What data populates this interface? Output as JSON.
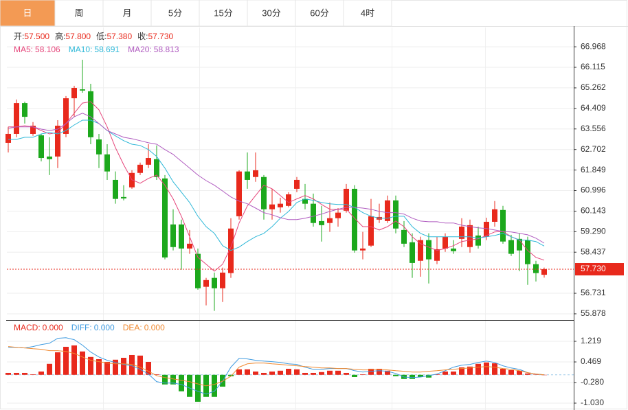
{
  "tabs": [
    "日",
    "周",
    "月",
    "5分",
    "15分",
    "30分",
    "60分",
    "4时"
  ],
  "chart_data": [
    {
      "type": "candlestick",
      "header": [
        {
          "label": "开:",
          "value": "57.500"
        },
        {
          "label": "高:",
          "value": "57.800"
        },
        {
          "label": "低:",
          "value": "57.380"
        },
        {
          "label": "收:",
          "value": "57.730"
        }
      ],
      "open": [
        62.98,
        63.35,
        64.63,
        63.35,
        63.29,
        62.41,
        62.41,
        63.35,
        64.83,
        65.2,
        65.12,
        63.12,
        62.5,
        61.44,
        60.73,
        61.13,
        61.73,
        62.07,
        62.3,
        61.5,
        59.59,
        59.59,
        58.59,
        58.37,
        57.0,
        57.37,
        56.94,
        57.57,
        59.93,
        61.79,
        61.56,
        61.56,
        60.22,
        60.3,
        60.36,
        61.07,
        60.65,
        60.45,
        59.73,
        59.65,
        59.85,
        60.16,
        61.07,
        58.51,
        58.71,
        59.79,
        59.73,
        60.59,
        59.36,
        58.85,
        58.08,
        58.94,
        58.08,
        58.59,
        58.59,
        58.99,
        58.65,
        59.13,
        59.08,
        59.7,
        60.19,
        58.94,
        58.99,
        58.94,
        57.94,
        57.5
      ],
      "high": [
        63.64,
        64.78,
        64.69,
        63.84,
        63.35,
        63.21,
        63.92,
        64.92,
        65.35,
        66.43,
        65.43,
        63.35,
        62.92,
        61.79,
        61.22,
        61.84,
        62.16,
        62.92,
        62.87,
        61.64,
        60.22,
        59.79,
        59.36,
        58.59,
        57.37,
        57.59,
        57.8,
        59.85,
        61.84,
        62.58,
        62.58,
        61.64,
        61.07,
        60.7,
        60.93,
        61.56,
        61.27,
        60.87,
        60.36,
        60.5,
        60.27,
        61.27,
        61.22,
        59.28,
        60.65,
        60.45,
        60.79,
        60.79,
        59.73,
        59.22,
        59.08,
        59.22,
        59.08,
        59.22,
        58.94,
        59.85,
        59.79,
        59.5,
        59.87,
        60.56,
        60.36,
        59.16,
        59.22,
        59.08,
        58.08,
        57.8
      ],
      "low": [
        62.58,
        63.21,
        63.78,
        63.27,
        62.21,
        61.64,
        61.93,
        63.21,
        64.06,
        65.06,
        62.92,
        61.93,
        61.44,
        60.45,
        60.59,
        61.07,
        61.64,
        61.93,
        61.44,
        58.14,
        58.51,
        57.71,
        58.37,
        56.88,
        56.23,
        56.0,
        56.37,
        57.37,
        59.79,
        61.07,
        61.36,
        59.79,
        59.79,
        60.08,
        60.3,
        60.93,
        60.22,
        59.5,
        58.88,
        59.28,
        59.5,
        60.08,
        58.42,
        58.14,
        58.65,
        59.65,
        59.65,
        59.22,
        58.65,
        57.37,
        57.42,
        57.14,
        57.94,
        58.45,
        58.37,
        58.65,
        58.42,
        58.59,
        58.94,
        59.5,
        58.79,
        58.28,
        57.65,
        57.08,
        57.22,
        57.38
      ],
      "close": [
        63.35,
        64.63,
        64.06,
        63.69,
        62.35,
        62.3,
        63.69,
        64.83,
        65.26,
        65.15,
        63.21,
        62.5,
        61.79,
        60.65,
        60.67,
        61.73,
        62.07,
        62.35,
        61.56,
        58.22,
        58.65,
        58.59,
        58.79,
        56.94,
        57.28,
        56.94,
        57.59,
        59.42,
        61.79,
        61.44,
        61.84,
        60.22,
        60.42,
        60.45,
        60.84,
        61.44,
        60.45,
        59.65,
        59.56,
        59.85,
        60.08,
        61.07,
        58.51,
        58.59,
        59.93,
        59.9,
        60.59,
        59.42,
        58.79,
        57.99,
        58.94,
        58.14,
        58.56,
        59.08,
        58.48,
        59.5,
        59.56,
        58.71,
        59.7,
        60.22,
        58.88,
        58.37,
        58.51,
        57.94,
        57.57,
        57.73
      ],
      "up_color": "#e8291c",
      "down_color": "#1ca81c",
      "series": [
        {
          "name": "MA5:",
          "value_label": "58.106",
          "color": "#e5457a",
          "values": [
            63.64,
            63.64,
            63.69,
            63.64,
            63.49,
            63.35,
            63.41,
            63.78,
            64.21,
            64.63,
            64.69,
            64.35,
            63.64,
            62.78,
            62.07,
            61.44,
            61.3,
            61.5,
            61.64,
            61.22,
            60.65,
            59.93,
            59.08,
            58.22,
            57.94,
            57.65,
            57.94,
            58.65,
            59.65,
            60.36,
            60.79,
            61.22,
            61.07,
            60.79,
            60.5,
            60.65,
            60.79,
            60.65,
            60.42,
            60.22,
            60.22,
            60.22,
            59.85,
            59.5,
            59.5,
            59.36,
            59.5,
            59.73,
            59.5,
            59.08,
            58.79,
            58.65,
            58.51,
            58.59,
            58.71,
            58.88,
            58.94,
            58.99,
            59.13,
            59.28,
            59.3,
            59.08,
            58.94,
            58.51,
            58.22,
            58.106
          ]
        },
        {
          "name": "MA10:",
          "value_label": "58.691",
          "color": "#2eb8d8",
          "values": [
            63.12,
            63.12,
            63.21,
            63.21,
            63.35,
            63.41,
            63.35,
            63.49,
            63.72,
            63.92,
            63.92,
            63.78,
            63.49,
            63.27,
            63.07,
            62.92,
            62.87,
            62.7,
            62.41,
            61.93,
            61.36,
            60.93,
            60.5,
            59.93,
            59.5,
            59.22,
            58.71,
            58.51,
            58.65,
            58.88,
            59.08,
            59.22,
            59.5,
            59.85,
            60.13,
            60.5,
            60.65,
            60.59,
            60.5,
            60.45,
            60.42,
            60.42,
            60.3,
            60.08,
            59.93,
            59.85,
            59.85,
            59.93,
            59.93,
            59.5,
            59.22,
            59.08,
            59.08,
            59.08,
            59.08,
            59.08,
            59.08,
            59.02,
            59.08,
            59.13,
            59.22,
            59.08,
            58.94,
            58.94,
            58.88,
            58.691
          ]
        },
        {
          "name": "MA20:",
          "value_label": "58.813",
          "color": "#b05cc0",
          "values": [
            63.58,
            63.64,
            63.64,
            63.64,
            63.55,
            63.49,
            63.55,
            63.78,
            64.06,
            64.21,
            64.06,
            63.78,
            63.49,
            63.35,
            63.21,
            63.15,
            63.07,
            62.98,
            62.92,
            62.7,
            62.5,
            62.21,
            61.93,
            61.64,
            61.41,
            61.22,
            60.98,
            60.73,
            60.56,
            60.45,
            60.27,
            60.08,
            59.99,
            59.87,
            59.79,
            59.79,
            59.85,
            59.93,
            60.02,
            60.13,
            60.22,
            60.3,
            60.3,
            60.27,
            60.22,
            60.13,
            60.08,
            60.08,
            60.02,
            59.85,
            59.73,
            59.7,
            59.7,
            59.65,
            59.65,
            59.56,
            59.5,
            59.45,
            59.42,
            59.36,
            59.3,
            59.28,
            59.22,
            59.16,
            59.02,
            58.813
          ]
        }
      ],
      "ylim": [
        55.62,
        67.77
      ],
      "yticks": [
        66.968,
        66.115,
        65.262,
        64.409,
        63.556,
        62.702,
        61.849,
        60.996,
        60.143,
        {
          "value": 59.29,
          "label": "59.290"
        },
        58.437,
        56.731,
        55.878
      ],
      "grid": true
    },
    {
      "type": "macd",
      "histogram": {
        "name": "MACD:",
        "value_label": "0.000",
        "values": [
          0.07,
          0.07,
          0.07,
          0.02,
          0.12,
          0.4,
          0.82,
          1.02,
          1.07,
          0.85,
          0.65,
          0.57,
          0.47,
          0.55,
          0.62,
          0.72,
          0.7,
          0.47,
          0.02,
          -0.35,
          -0.35,
          -0.6,
          -0.8,
          -0.98,
          -0.8,
          -0.8,
          -0.43,
          -0.05,
          0.2,
          0.2,
          0.12,
          0.07,
          0.12,
          0.15,
          0.22,
          0.2,
          0.07,
          0.07,
          0.1,
          0.15,
          0.15,
          0.07,
          -0.08,
          0.02,
          0.22,
          0.22,
          0.15,
          -0.05,
          -0.15,
          -0.15,
          -0.08,
          -0.1,
          0.02,
          0.12,
          0.12,
          0.27,
          0.3,
          0.4,
          0.45,
          0.42,
          0.22,
          0.17,
          0.15,
          0.05,
          0.01,
          0
        ]
      },
      "series": [
        {
          "name": "DIFF:",
          "value_label": "0.000",
          "color": "#3f9be0",
          "values": [
            1.0,
            1.0,
            0.98,
            1.03,
            1.1,
            1.15,
            1.33,
            1.35,
            1.28,
            1.08,
            0.83,
            0.65,
            0.53,
            0.45,
            0.38,
            0.33,
            0.2,
            0.03,
            -0.25,
            -0.3,
            -0.3,
            -0.35,
            -0.48,
            -0.6,
            -0.7,
            -0.6,
            -0.23,
            0.28,
            0.6,
            0.58,
            0.53,
            0.5,
            0.48,
            0.45,
            0.4,
            0.38,
            0.28,
            0.2,
            0.2,
            0.23,
            0.23,
            0.23,
            0.15,
            0.1,
            0.13,
            0.15,
            0.13,
            0.05,
            -0.08,
            -0.1,
            -0.08,
            -0.03,
            0.03,
            0.15,
            0.28,
            0.35,
            0.38,
            0.45,
            0.5,
            0.45,
            0.33,
            0.25,
            0.2,
            0.08,
            0.03,
            0
          ]
        },
        {
          "name": "DEA:",
          "value_label": "0.000",
          "color": "#f0882e",
          "values": [
            1.03,
            1.0,
            0.98,
            0.95,
            0.93,
            0.88,
            0.88,
            0.85,
            0.78,
            0.65,
            0.53,
            0.48,
            0.43,
            0.4,
            0.4,
            0.38,
            0.28,
            0.13,
            -0.03,
            -0.1,
            -0.15,
            -0.2,
            -0.25,
            -0.33,
            -0.4,
            -0.35,
            -0.23,
            -0.05,
            0.28,
            0.4,
            0.43,
            0.43,
            0.4,
            0.38,
            0.35,
            0.33,
            0.3,
            0.28,
            0.25,
            0.25,
            0.23,
            0.23,
            0.2,
            0.18,
            0.18,
            0.2,
            0.18,
            0.15,
            0.13,
            0.1,
            0.1,
            0.13,
            0.15,
            0.18,
            0.2,
            0.23,
            0.25,
            0.28,
            0.3,
            0.28,
            0.23,
            0.2,
            0.15,
            0.08,
            0.03,
            0
          ]
        }
      ],
      "up_color": "#e8291c",
      "down_color": "#1ca81c",
      "ylim": [
        -1.28,
        1.944
      ],
      "yticks": [
        1.219,
        0.469,
        {
          "value": -0.28,
          "label": "-0.280"
        },
        {
          "value": -1.03,
          "label": "-1.030"
        }
      ],
      "grid": true
    }
  ]
}
